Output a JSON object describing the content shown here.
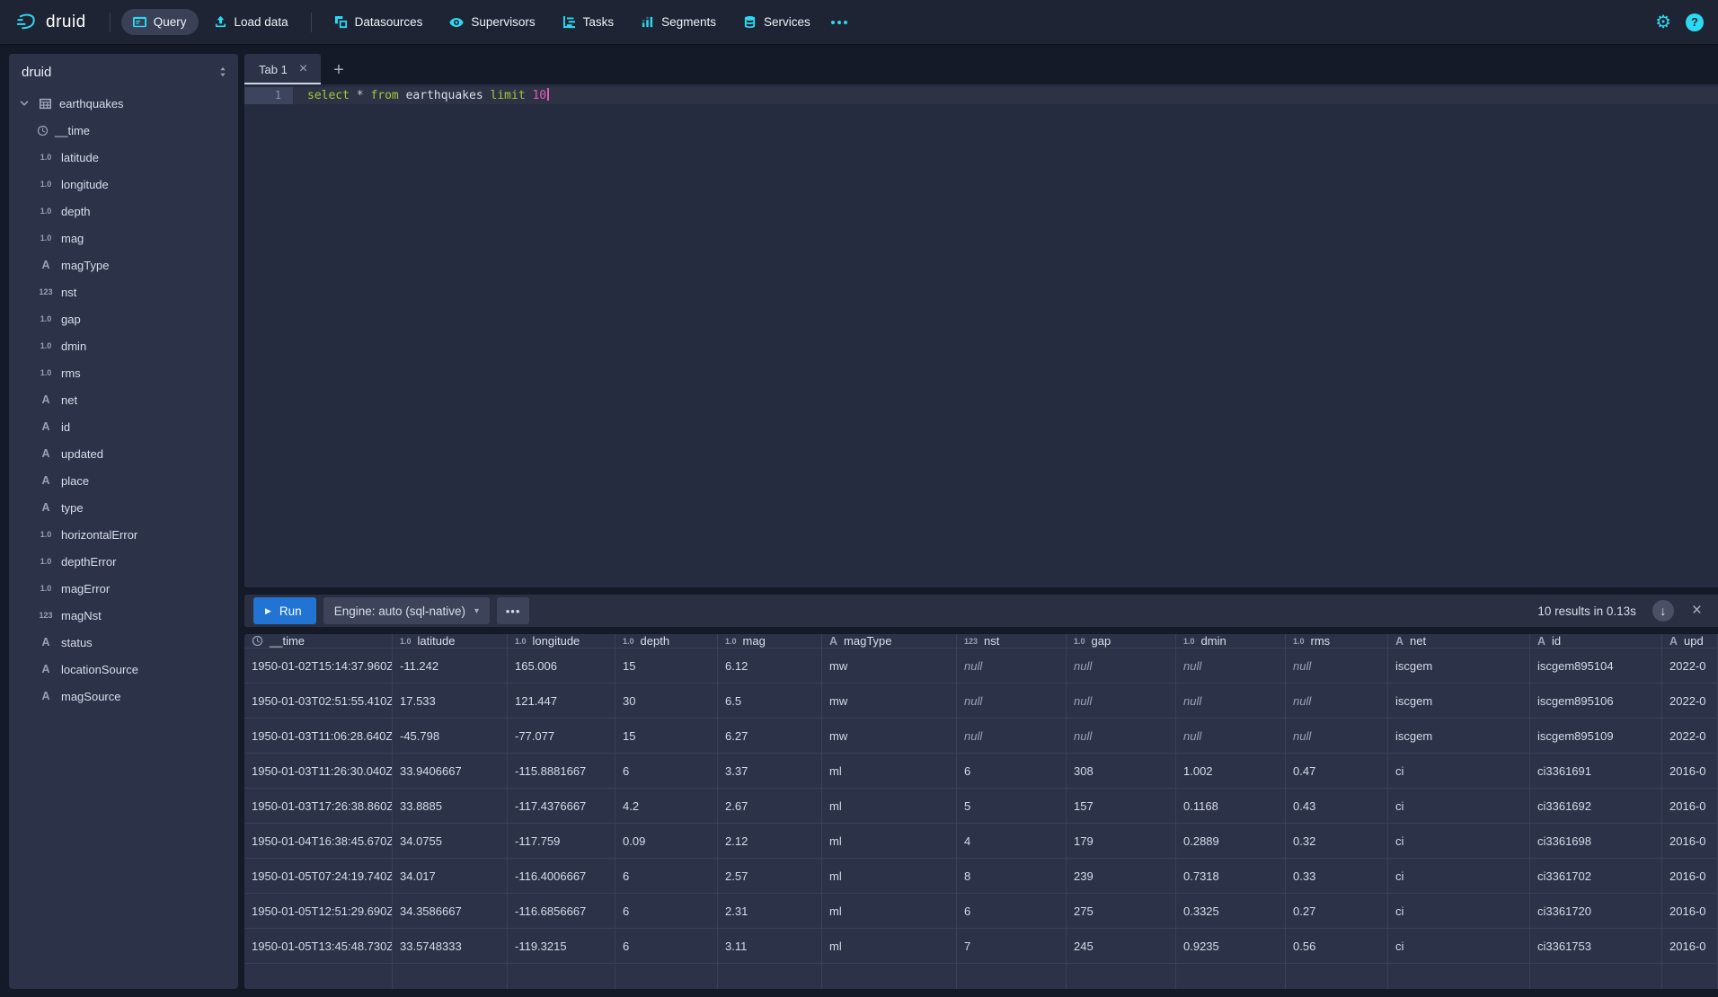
{
  "navbar": {
    "brand": "druid",
    "groups": [
      {
        "items": [
          {
            "label": "Query",
            "icon": "app-console",
            "active": true
          },
          {
            "label": "Load data",
            "icon": "upload",
            "active": false
          }
        ]
      },
      {
        "items": [
          {
            "label": "Datasources",
            "icon": "datasources",
            "active": false
          },
          {
            "label": "Supervisors",
            "icon": "eye",
            "active": false
          },
          {
            "label": "Tasks",
            "icon": "gantt",
            "active": false
          },
          {
            "label": "Segments",
            "icon": "stacked-chart",
            "active": false
          },
          {
            "label": "Services",
            "icon": "database",
            "active": false
          }
        ]
      }
    ]
  },
  "icons": {
    "gear": "⚙",
    "help": "?",
    "play": "▶",
    "caret_down": "▾",
    "more": "•••",
    "tab_close": "×",
    "results_close": "×",
    "new_tab": "+",
    "download": "↓"
  },
  "type_glyphs": {
    "float": "1.0",
    "int": "123",
    "string": "A"
  },
  "sidebar": {
    "title": "druid",
    "table": {
      "name": "earthquakes",
      "icon": "table"
    },
    "columns": [
      {
        "name": "__time",
        "type": "time"
      },
      {
        "name": "latitude",
        "type": "float"
      },
      {
        "name": "longitude",
        "type": "float"
      },
      {
        "name": "depth",
        "type": "float"
      },
      {
        "name": "mag",
        "type": "float"
      },
      {
        "name": "magType",
        "type": "string"
      },
      {
        "name": "nst",
        "type": "int"
      },
      {
        "name": "gap",
        "type": "float"
      },
      {
        "name": "dmin",
        "type": "float"
      },
      {
        "name": "rms",
        "type": "float"
      },
      {
        "name": "net",
        "type": "string"
      },
      {
        "name": "id",
        "type": "string"
      },
      {
        "name": "updated",
        "type": "string"
      },
      {
        "name": "place",
        "type": "string"
      },
      {
        "name": "type",
        "type": "string"
      },
      {
        "name": "horizontalError",
        "type": "float"
      },
      {
        "name": "depthError",
        "type": "float"
      },
      {
        "name": "magError",
        "type": "float"
      },
      {
        "name": "magNst",
        "type": "int"
      },
      {
        "name": "status",
        "type": "string"
      },
      {
        "name": "locationSource",
        "type": "string"
      },
      {
        "name": "magSource",
        "type": "string"
      }
    ]
  },
  "tabs": {
    "items": [
      {
        "label": "Tab 1",
        "active": true
      }
    ]
  },
  "editor": {
    "line_number": "1",
    "tokens": [
      {
        "text": "select",
        "type": "keyword"
      },
      {
        "text": " ",
        "type": "operator"
      },
      {
        "text": "*",
        "type": "operator"
      },
      {
        "text": " ",
        "type": "operator"
      },
      {
        "text": "from",
        "type": "keyword"
      },
      {
        "text": " ",
        "type": "operator"
      },
      {
        "text": "earthquakes",
        "type": "identifier"
      },
      {
        "text": " ",
        "type": "operator"
      },
      {
        "text": "limit",
        "type": "keyword"
      },
      {
        "text": " ",
        "type": "operator"
      },
      {
        "text": "10",
        "type": "number"
      }
    ]
  },
  "runbar": {
    "run_label": "Run",
    "engine_label": "Engine: auto (sql-native)",
    "results_text": "10 results in 0.13s"
  },
  "results": {
    "columns": [
      {
        "label": "__time",
        "type": "time"
      },
      {
        "label": "latitude",
        "type": "float"
      },
      {
        "label": "longitude",
        "type": "float"
      },
      {
        "label": "depth",
        "type": "float"
      },
      {
        "label": "mag",
        "type": "float"
      },
      {
        "label": "magType",
        "type": "string"
      },
      {
        "label": "nst",
        "type": "int"
      },
      {
        "label": "gap",
        "type": "float"
      },
      {
        "label": "dmin",
        "type": "float"
      },
      {
        "label": "rms",
        "type": "float"
      },
      {
        "label": "net",
        "type": "string"
      },
      {
        "label": "id",
        "type": "string"
      },
      {
        "label": "upd",
        "type": "string"
      }
    ],
    "rows": [
      [
        "1950-01-02T15:14:37.960Z",
        "-11.242",
        "165.006",
        "15",
        "6.12",
        "mw",
        "null",
        "null",
        "null",
        "null",
        "iscgem",
        "iscgem895104",
        "2022-0"
      ],
      [
        "1950-01-03T02:51:55.410Z",
        "17.533",
        "121.447",
        "30",
        "6.5",
        "mw",
        "null",
        "null",
        "null",
        "null",
        "iscgem",
        "iscgem895106",
        "2022-0"
      ],
      [
        "1950-01-03T11:06:28.640Z",
        "-45.798",
        "-77.077",
        "15",
        "6.27",
        "mw",
        "null",
        "null",
        "null",
        "null",
        "iscgem",
        "iscgem895109",
        "2022-0"
      ],
      [
        "1950-01-03T11:26:30.040Z",
        "33.9406667",
        "-115.8881667",
        "6",
        "3.37",
        "ml",
        "6",
        "308",
        "1.002",
        "0.47",
        "ci",
        "ci3361691",
        "2016-0"
      ],
      [
        "1950-01-03T17:26:38.860Z",
        "33.8885",
        "-117.4376667",
        "4.2",
        "2.67",
        "ml",
        "5",
        "157",
        "0.1168",
        "0.43",
        "ci",
        "ci3361692",
        "2016-0"
      ],
      [
        "1950-01-04T16:38:45.670Z",
        "34.0755",
        "-117.759",
        "0.09",
        "2.12",
        "ml",
        "4",
        "179",
        "0.2889",
        "0.32",
        "ci",
        "ci3361698",
        "2016-0"
      ],
      [
        "1950-01-05T07:24:19.740Z",
        "34.017",
        "-116.4006667",
        "6",
        "2.57",
        "ml",
        "8",
        "239",
        "0.7318",
        "0.33",
        "ci",
        "ci3361702",
        "2016-0"
      ],
      [
        "1950-01-05T12:51:29.690Z",
        "34.3586667",
        "-116.6856667",
        "6",
        "2.31",
        "ml",
        "6",
        "275",
        "0.3325",
        "0.27",
        "ci",
        "ci3361720",
        "2016-0"
      ],
      [
        "1950-01-05T13:45:48.730Z",
        "33.5748333",
        "-119.3215",
        "6",
        "3.11",
        "ml",
        "7",
        "245",
        "0.9235",
        "0.56",
        "ci",
        "ci3361753",
        "2016-0"
      ]
    ]
  },
  "colors": {
    "accent_cyan": "#2bd9f2",
    "run_button_blue": "#2173d4",
    "sql_keyword": "#a0c93c",
    "sql_number": "#e05ab8",
    "panel_bg": "#2c3349",
    "navbar_bg": "#1e2433",
    "page_bg": "#151a28"
  }
}
